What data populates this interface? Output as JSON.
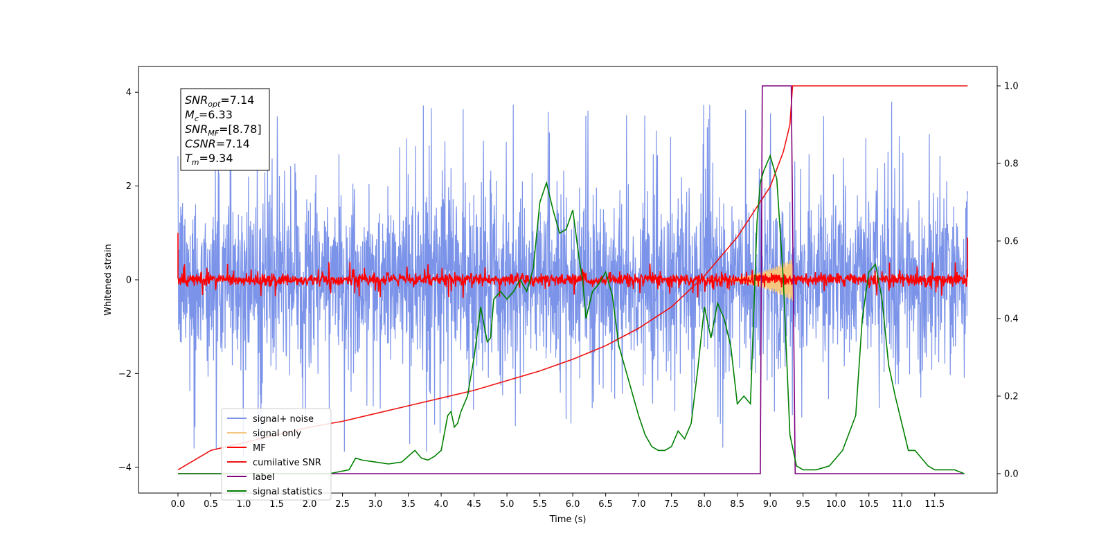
{
  "chart_data": {
    "type": "line",
    "xlabel": "Time (s)",
    "ylabel": "Whitened strain",
    "x_ticks": [
      "0.0",
      "0.5",
      "1.0",
      "1.5",
      "2.0",
      "2.5",
      "3.0",
      "3.5",
      "4.0",
      "4.5",
      "5.0",
      "5.5",
      "6.0",
      "6.5",
      "7.0",
      "7.5",
      "8.0",
      "8.5",
      "9.0",
      "9.5",
      "10.0",
      "10.5",
      "11.0",
      "11.5"
    ],
    "y_left_ticks": [
      "-4",
      "-2",
      "0",
      "2",
      "4"
    ],
    "y_right_ticks": [
      "0.0",
      "0.2",
      "0.4",
      "0.6",
      "0.8",
      "1.0"
    ],
    "xlim": [
      -0.6,
      12.45
    ],
    "ylim_left": [
      -4.55,
      4.55
    ],
    "ylim_right": [
      -0.05,
      1.05
    ],
    "grid": false,
    "legend_position": "lower-left",
    "annotation": [
      {
        "base": "SNR",
        "sub": "opt",
        "rest": "=7.14"
      },
      {
        "base": "M",
        "sub": "c",
        "rest": "=6.33"
      },
      {
        "base": "SNR",
        "sub": "MF",
        "rest": "=[8.78]"
      },
      {
        "base": "CSNR",
        "sub": "",
        "rest": "=7.14"
      },
      {
        "base": "T",
        "sub": "m",
        "rest": "=9.34"
      }
    ],
    "series": [
      {
        "name": "signal+ noise",
        "color": "#7b93e8",
        "axis": "left",
        "style": "noise band ±2.3 std ~1.0, spikes to ±4.1",
        "x_range": [
          0.0,
          12.0
        ]
      },
      {
        "name": "signal only",
        "color": "#f5c77e",
        "axis": "left",
        "style": "chirp envelope growing to ±0.45 at 9.34 s",
        "x_range": [
          8.0,
          9.34
        ]
      },
      {
        "name": "MF",
        "color": "#ff0000",
        "axis": "left",
        "style": "noise band ±0.15",
        "x_range": [
          0.0,
          12.0
        ]
      },
      {
        "name": "cumilative SNR",
        "color": "#ee1111",
        "axis": "right",
        "style": "rising curve",
        "x": [
          0.0,
          0.5,
          1.0,
          1.5,
          2.0,
          2.5,
          3.0,
          3.5,
          4.0,
          4.5,
          5.0,
          5.5,
          6.0,
          6.5,
          7.0,
          7.5,
          8.0,
          8.5,
          9.0,
          9.2,
          9.3,
          9.34,
          12.0
        ],
        "values": [
          0.01,
          0.06,
          0.08,
          0.1,
          0.12,
          0.135,
          0.155,
          0.175,
          0.195,
          0.215,
          0.24,
          0.265,
          0.295,
          0.33,
          0.375,
          0.43,
          0.51,
          0.61,
          0.74,
          0.83,
          0.9,
          1.0,
          1.0
        ]
      },
      {
        "name": "label",
        "color": "#800080",
        "axis": "right",
        "x": [
          0.0,
          8.85,
          8.88,
          9.32,
          9.38,
          11.95
        ],
        "values": [
          0.0,
          0.0,
          1.0,
          1.0,
          0.0,
          0.0
        ]
      },
      {
        "name": "signal statistics",
        "color": "#008000",
        "axis": "right",
        "x": [
          0.0,
          0.5,
          1.0,
          1.5,
          2.0,
          2.3,
          2.6,
          2.7,
          2.8,
          3.0,
          3.2,
          3.4,
          3.6,
          3.7,
          3.8,
          3.9,
          4.0,
          4.1,
          4.15,
          4.2,
          4.25,
          4.3,
          4.4,
          4.5,
          4.6,
          4.7,
          4.75,
          4.8,
          4.9,
          5.0,
          5.1,
          5.2,
          5.3,
          5.4,
          5.5,
          5.6,
          5.7,
          5.8,
          5.9,
          6.0,
          6.1,
          6.15,
          6.2,
          6.3,
          6.4,
          6.5,
          6.6,
          6.7,
          6.8,
          6.9,
          7.0,
          7.1,
          7.2,
          7.3,
          7.4,
          7.5,
          7.6,
          7.7,
          7.8,
          7.9,
          8.0,
          8.1,
          8.2,
          8.3,
          8.4,
          8.5,
          8.6,
          8.7,
          8.8,
          8.85,
          8.9,
          9.0,
          9.1,
          9.2,
          9.3,
          9.4,
          9.5,
          9.7,
          9.9,
          10.1,
          10.3,
          10.4,
          10.5,
          10.6,
          10.7,
          10.8,
          10.9,
          11.0,
          11.1,
          11.2,
          11.3,
          11.4,
          11.5,
          11.6,
          11.8,
          11.95
        ],
        "values": [
          0.0,
          0.0,
          0.0,
          0.0,
          0.0,
          0.0,
          0.01,
          0.04,
          0.035,
          0.03,
          0.025,
          0.03,
          0.06,
          0.04,
          0.035,
          0.045,
          0.06,
          0.15,
          0.16,
          0.12,
          0.13,
          0.16,
          0.2,
          0.3,
          0.43,
          0.34,
          0.35,
          0.45,
          0.47,
          0.45,
          0.47,
          0.5,
          0.47,
          0.53,
          0.7,
          0.75,
          0.68,
          0.62,
          0.63,
          0.68,
          0.55,
          0.5,
          0.4,
          0.47,
          0.49,
          0.52,
          0.46,
          0.33,
          0.27,
          0.21,
          0.15,
          0.1,
          0.07,
          0.06,
          0.06,
          0.07,
          0.11,
          0.09,
          0.13,
          0.27,
          0.43,
          0.35,
          0.44,
          0.4,
          0.33,
          0.18,
          0.2,
          0.18,
          0.65,
          0.75,
          0.78,
          0.82,
          0.76,
          0.5,
          0.1,
          0.02,
          0.01,
          0.01,
          0.02,
          0.06,
          0.15,
          0.4,
          0.52,
          0.54,
          0.45,
          0.28,
          0.2,
          0.13,
          0.06,
          0.06,
          0.04,
          0.02,
          0.01,
          0.01,
          0.01,
          0.0
        ]
      }
    ]
  }
}
